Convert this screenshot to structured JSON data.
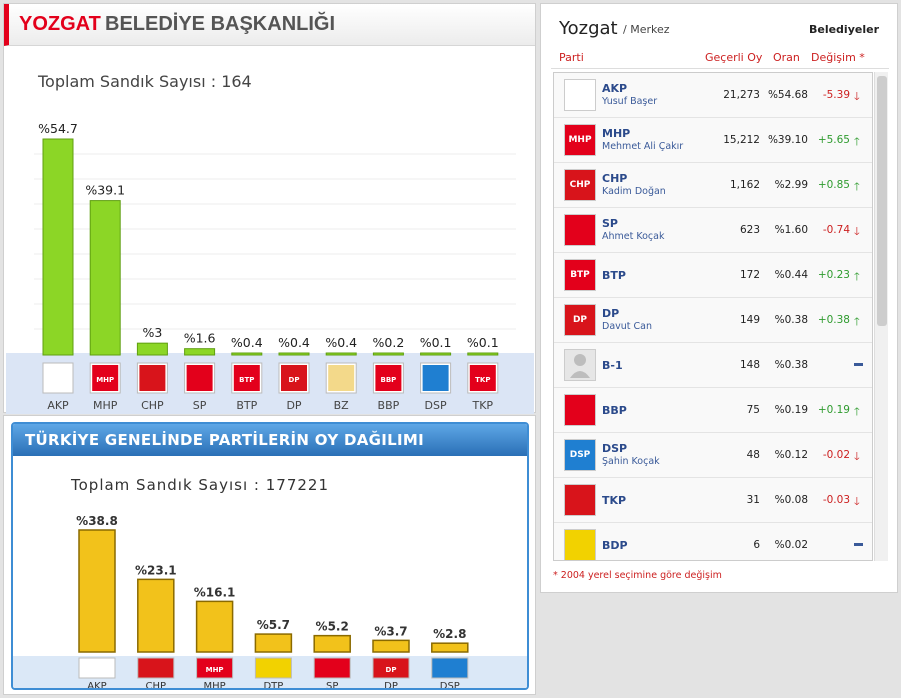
{
  "local": {
    "title_city": "YOZGAT",
    "title_rest": "BELEDİYE BAŞKANLIĞI",
    "total_label": "Toplam Sandık Sayısı : 164"
  },
  "national": {
    "banner": "TÜRKİYE GENELİNDE PARTİLERİN OY DAĞILIMI",
    "total_label": "Toplam Sandık Sayısı : 177221"
  },
  "results": {
    "city": "Yozgat",
    "district": "/ Merkez",
    "type": "Belediyeler",
    "headers": {
      "party": "Parti",
      "votes": "Geçerli Oy",
      "pct": "Oran",
      "change": "Değişim *"
    },
    "rows": [
      {
        "party": "AKP",
        "candidate": "Yusuf Başer",
        "votes": "21,273",
        "pct": "%54.68",
        "change": "-5.39",
        "dir": "down",
        "logo": "ak-parti-logo",
        "logo_text": "",
        "logo_color": "#ffffff"
      },
      {
        "party": "MHP",
        "candidate": "Mehmet Ali Çakır",
        "votes": "15,212",
        "pct": "%39.10",
        "change": "+5.65",
        "dir": "up",
        "logo": "mhp-logo",
        "logo_text": "MHP",
        "logo_color": "#e3001b"
      },
      {
        "party": "CHP",
        "candidate": "Kadim Doğan",
        "votes": "1,162",
        "pct": "%2.99",
        "change": "+0.85",
        "dir": "up",
        "logo": "chp-logo",
        "logo_text": "CHP",
        "logo_color": "#d8141b"
      },
      {
        "party": "SP",
        "candidate": "Ahmet Koçak",
        "votes": "623",
        "pct": "%1.60",
        "change": "-0.74",
        "dir": "down",
        "logo": "sp-logo",
        "logo_text": "",
        "logo_color": "#e3001b"
      },
      {
        "party": "BTP",
        "candidate": "",
        "votes": "172",
        "pct": "%0.44",
        "change": "+0.23",
        "dir": "up",
        "logo": "btp-logo",
        "logo_text": "BTP",
        "logo_color": "#e3001b"
      },
      {
        "party": "DP",
        "candidate": "Davut Can",
        "votes": "149",
        "pct": "%0.38",
        "change": "+0.38",
        "dir": "up",
        "logo": "dp-logo",
        "logo_text": "DP",
        "logo_color": "#d8141b"
      },
      {
        "party": "B-1",
        "candidate": "",
        "votes": "148",
        "pct": "%0.38",
        "change": "",
        "dir": "none",
        "logo": "person-placeholder-icon",
        "logo_text": "",
        "logo_color": "#e6e6e6"
      },
      {
        "party": "BBP",
        "candidate": "",
        "votes": "75",
        "pct": "%0.19",
        "change": "+0.19",
        "dir": "up",
        "logo": "bbp-logo",
        "logo_text": "",
        "logo_color": "#e3001b"
      },
      {
        "party": "DSP",
        "candidate": "Şahin Koçak",
        "votes": "48",
        "pct": "%0.12",
        "change": "-0.02",
        "dir": "down",
        "logo": "dsp-logo",
        "logo_text": "DSP",
        "logo_color": "#1f7fd1"
      },
      {
        "party": "TKP",
        "candidate": "",
        "votes": "31",
        "pct": "%0.08",
        "change": "-0.03",
        "dir": "down",
        "logo": "tkp-logo",
        "logo_text": "",
        "logo_color": "#d8141b"
      },
      {
        "party": "BDP",
        "candidate": "",
        "votes": "6",
        "pct": "%0.02",
        "change": "",
        "dir": "none",
        "logo": "bdp-logo",
        "logo_text": "",
        "logo_color": "#f2d200"
      }
    ],
    "footnote": "* 2004 yerel seçimine göre değişim"
  },
  "colors": {
    "local_bar": "#8cd626",
    "national_bar": "#f2c21b",
    "up": "#2e9b2e",
    "down": "#cc1f1f",
    "neutral": "#3a5a99"
  },
  "chart_data": [
    {
      "type": "bar",
      "title": "YOZGAT BELEDİYE BAŞKANLIĞI",
      "categories": [
        "AKP",
        "MHP",
        "CHP",
        "SP",
        "BTP",
        "DP",
        "BZ",
        "BBP",
        "DSP",
        "TKP"
      ],
      "values": [
        54.7,
        39.1,
        3,
        1.6,
        0.4,
        0.4,
        0.4,
        0.2,
        0.1,
        0.1
      ],
      "data_labels": [
        "%54.7",
        "%39.1",
        "%3",
        "%1.6",
        "%0.4",
        "%0.4",
        "%0.4",
        "%0.2",
        "%0.1",
        "%0.1"
      ],
      "logo_colors": [
        "#ffffff",
        "#e3001b",
        "#d8141b",
        "#e3001b",
        "#e3001b",
        "#d8141b",
        "#f3d98a",
        "#e3001b",
        "#1f7fd1",
        "#e3001b"
      ],
      "logo_text": [
        "",
        "MHP",
        "",
        "",
        "BTP",
        "DP",
        "",
        "BBP",
        "",
        "TKP"
      ],
      "ylim": [
        0,
        60
      ],
      "grid": true
    },
    {
      "type": "bar",
      "title": "TÜRKİYE GENELİNDE PARTİLERİN OY DAĞILIMI",
      "categories": [
        "AKP",
        "CHP",
        "MHP",
        "DTP",
        "SP",
        "DP",
        "DSP"
      ],
      "values": [
        38.8,
        23.1,
        16.1,
        5.7,
        5.2,
        3.7,
        2.8
      ],
      "data_labels": [
        "%38.8",
        "%23.1",
        "%16.1",
        "%5.7",
        "%5.2",
        "%3.7",
        "%2.8"
      ],
      "logo_colors": [
        "#ffffff",
        "#d8141b",
        "#e3001b",
        "#f2d200",
        "#e3001b",
        "#d8141b",
        "#1f7fd1"
      ],
      "logo_text": [
        "",
        "",
        "MHP",
        "",
        "",
        "DP",
        ""
      ],
      "ylim": [
        0,
        40
      ],
      "grid": false
    }
  ]
}
